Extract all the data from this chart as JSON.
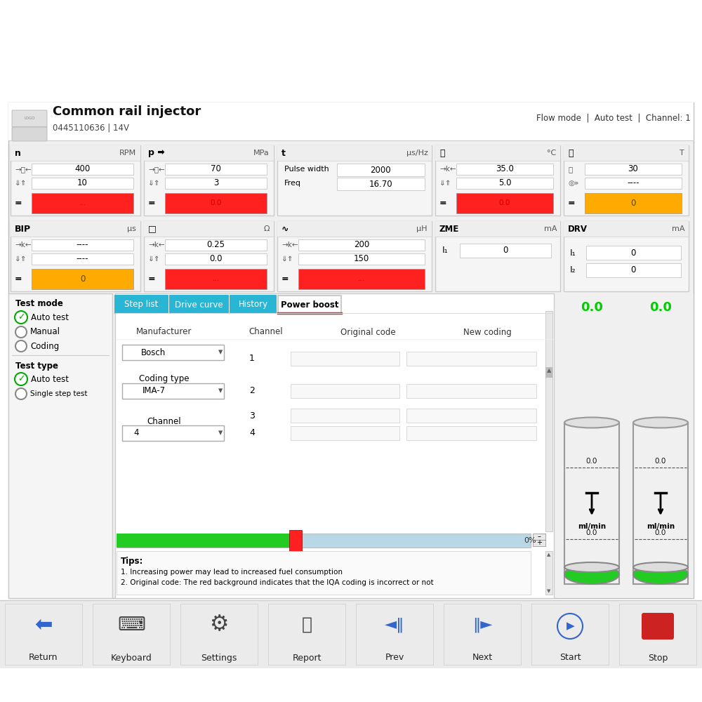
{
  "title": "Common rail injector",
  "subtitle": "0445110636 | 14V",
  "header_right": "Flow mode  |  Auto test  |  Channel: 1",
  "tabs": [
    "Step list",
    "Drive curve",
    "History",
    "Power boost"
  ],
  "tab_active": "Power boost",
  "red_color": "#ff2020",
  "orange_color": "#ffaa00",
  "green_color": "#00cc00",
  "light_blue": "#b8d8e8",
  "tab_blue": "#29b6d4",
  "panel_n_row1": [
    "400",
    "10"
  ],
  "panel_p_row1": [
    "70",
    "3"
  ],
  "panel_t_vals": [
    "2000",
    "16.70"
  ],
  "panel_temp_row1": [
    "35.0",
    "5.0"
  ],
  "panel_timer_row1": [
    "30",
    "----"
  ],
  "panel_bip_row1": [
    "----",
    "----"
  ],
  "panel_res_row1": [
    "0.25",
    "0.0"
  ],
  "panel_ind_row1": [
    "200",
    "150"
  ],
  "panel_zme_i1": "0",
  "panel_drv_i1": "0",
  "panel_drv_i2": "0",
  "tips_line1": "1. Increasing power may lead to increased fuel consumption",
  "tips_line2": "2. Original code: The red background indicates that the IQA coding is incorrect or not"
}
